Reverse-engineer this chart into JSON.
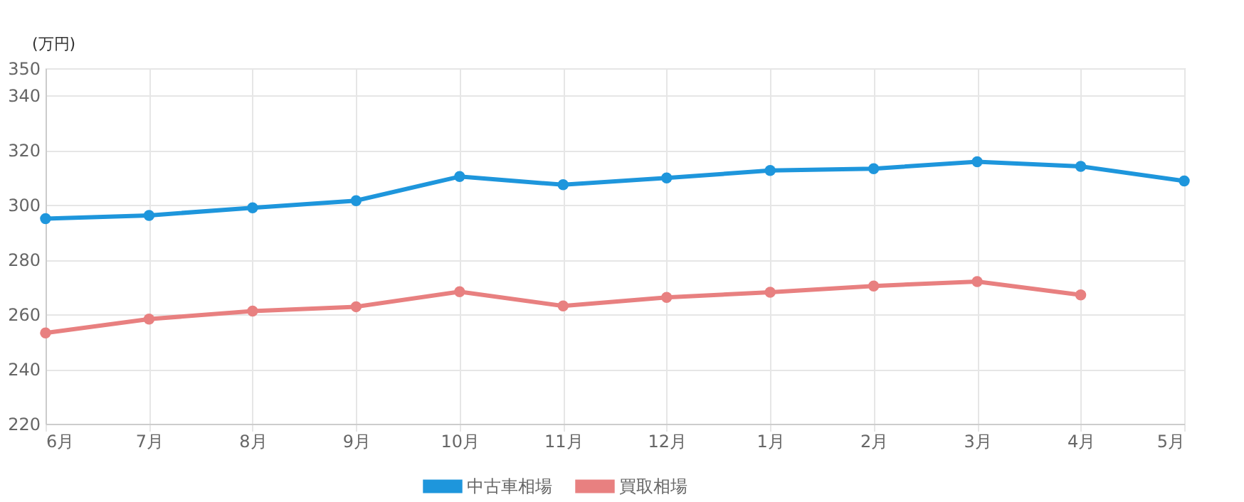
{
  "chart_data": {
    "type": "line",
    "ylabel": "(万円)",
    "categories": [
      "6月",
      "7月",
      "8月",
      "9月",
      "10月",
      "11月",
      "12月",
      "1月",
      "2月",
      "3月",
      "4月",
      "5月"
    ],
    "series": [
      {
        "name": "中古車相場",
        "color": "#1e96dc",
        "values": [
          295.0,
          296.2,
          299.0,
          301.6,
          310.4,
          307.4,
          309.9,
          312.6,
          313.3,
          315.8,
          314.1,
          308.8
        ]
      },
      {
        "name": "買取相場",
        "color": "#e88080",
        "values": [
          253.2,
          258.3,
          261.2,
          262.8,
          268.3,
          263.1,
          266.2,
          268.1,
          270.4,
          272.0,
          267.1,
          null
        ]
      }
    ],
    "ylim": [
      220,
      350
    ],
    "yticks": [
      220,
      240,
      260,
      280,
      300,
      320,
      340,
      350
    ],
    "grid": true,
    "legend": "bottom",
    "marker": "circle",
    "line_style": "solid"
  }
}
